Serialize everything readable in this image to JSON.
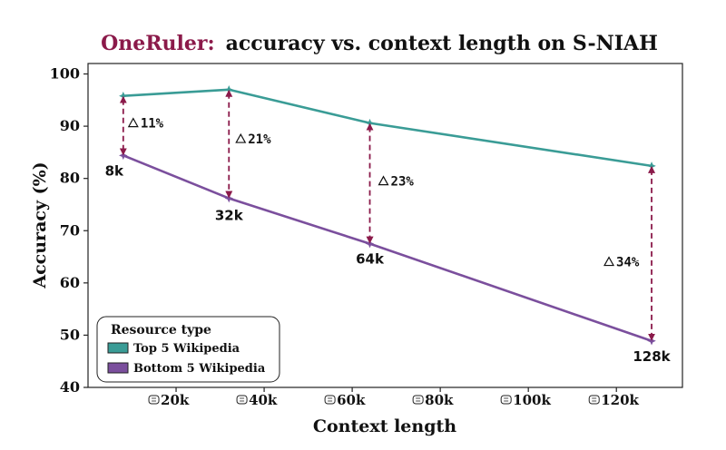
{
  "chart_data": {
    "type": "line",
    "title_highlight": "OneRuler:",
    "title_rest": "accuracy vs. context length on S-NIAH",
    "xlabel": "Context length",
    "ylabel": "Accuracy (%)",
    "xlim": [
      0,
      135000
    ],
    "ylim": [
      40,
      102
    ],
    "xticks": [
      {
        "value": 20000,
        "label": "20k"
      },
      {
        "value": 40000,
        "label": "40k"
      },
      {
        "value": 60000,
        "label": "60k"
      },
      {
        "value": 80000,
        "label": "80k"
      },
      {
        "value": 100000,
        "label": "100k"
      },
      {
        "value": 120000,
        "label": "120k"
      }
    ],
    "yticks": [
      40,
      50,
      60,
      70,
      80,
      90,
      100
    ],
    "x": [
      8000,
      32000,
      64000,
      128000
    ],
    "context_labels": [
      "8k",
      "32k",
      "64k",
      "128k"
    ],
    "series": [
      {
        "name": "Top 5 Wikipedia",
        "color": "#3a9c96",
        "values": [
          95.8,
          97.0,
          90.6,
          82.4
        ]
      },
      {
        "name": "Bottom 5 Wikipedia",
        "color": "#7b4f9d",
        "values": [
          84.4,
          76.2,
          67.5,
          48.9
        ]
      }
    ],
    "gap_labels": [
      "11%",
      "21%",
      "23%",
      "34%"
    ],
    "gap_arrow_color": "#8b1a4a",
    "legend": {
      "title": "Resource type",
      "position": "lower-left"
    },
    "grid": false
  }
}
